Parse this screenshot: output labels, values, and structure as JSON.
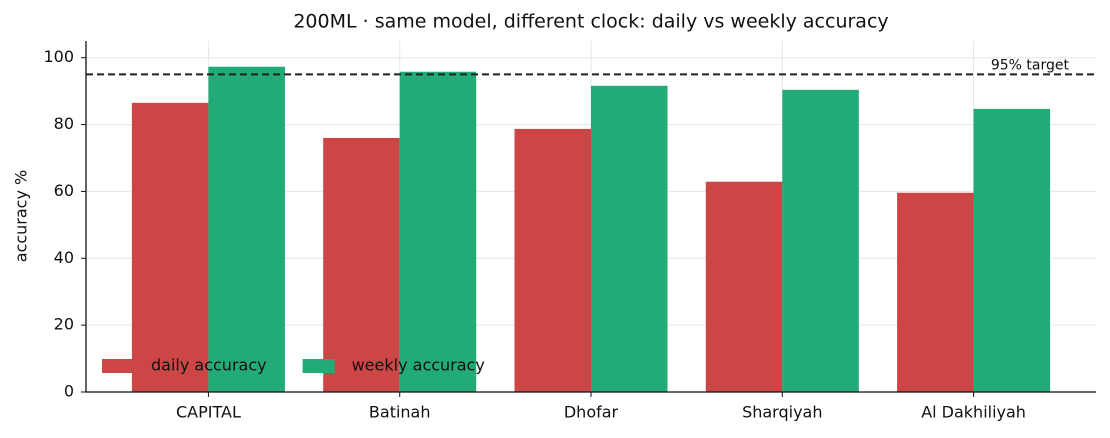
{
  "chart_data": {
    "type": "bar",
    "title": "200ML · same model, different clock: daily vs weekly accuracy",
    "y_label": "accuracy %",
    "categories": [
      "CAPITAL",
      "Batinah",
      "Dhofar",
      "Sharqiyah",
      "Al Dakhiliyah"
    ],
    "series": [
      {
        "name": "daily accuracy",
        "color": "#cc4646",
        "values": [
          86.5,
          76,
          78.7,
          62.9,
          59.6
        ]
      },
      {
        "name": "weekly accuracy",
        "color": "#22aa77",
        "values": [
          97.3,
          95.8,
          91.6,
          90.4,
          84.7
        ]
      }
    ],
    "ylim": [
      0,
      105
    ],
    "yticks": [
      0,
      20,
      40,
      60,
      80,
      100
    ],
    "grid": true,
    "target_line": {
      "value": 95,
      "label": "95% target"
    },
    "legend_position": "lower-left"
  }
}
